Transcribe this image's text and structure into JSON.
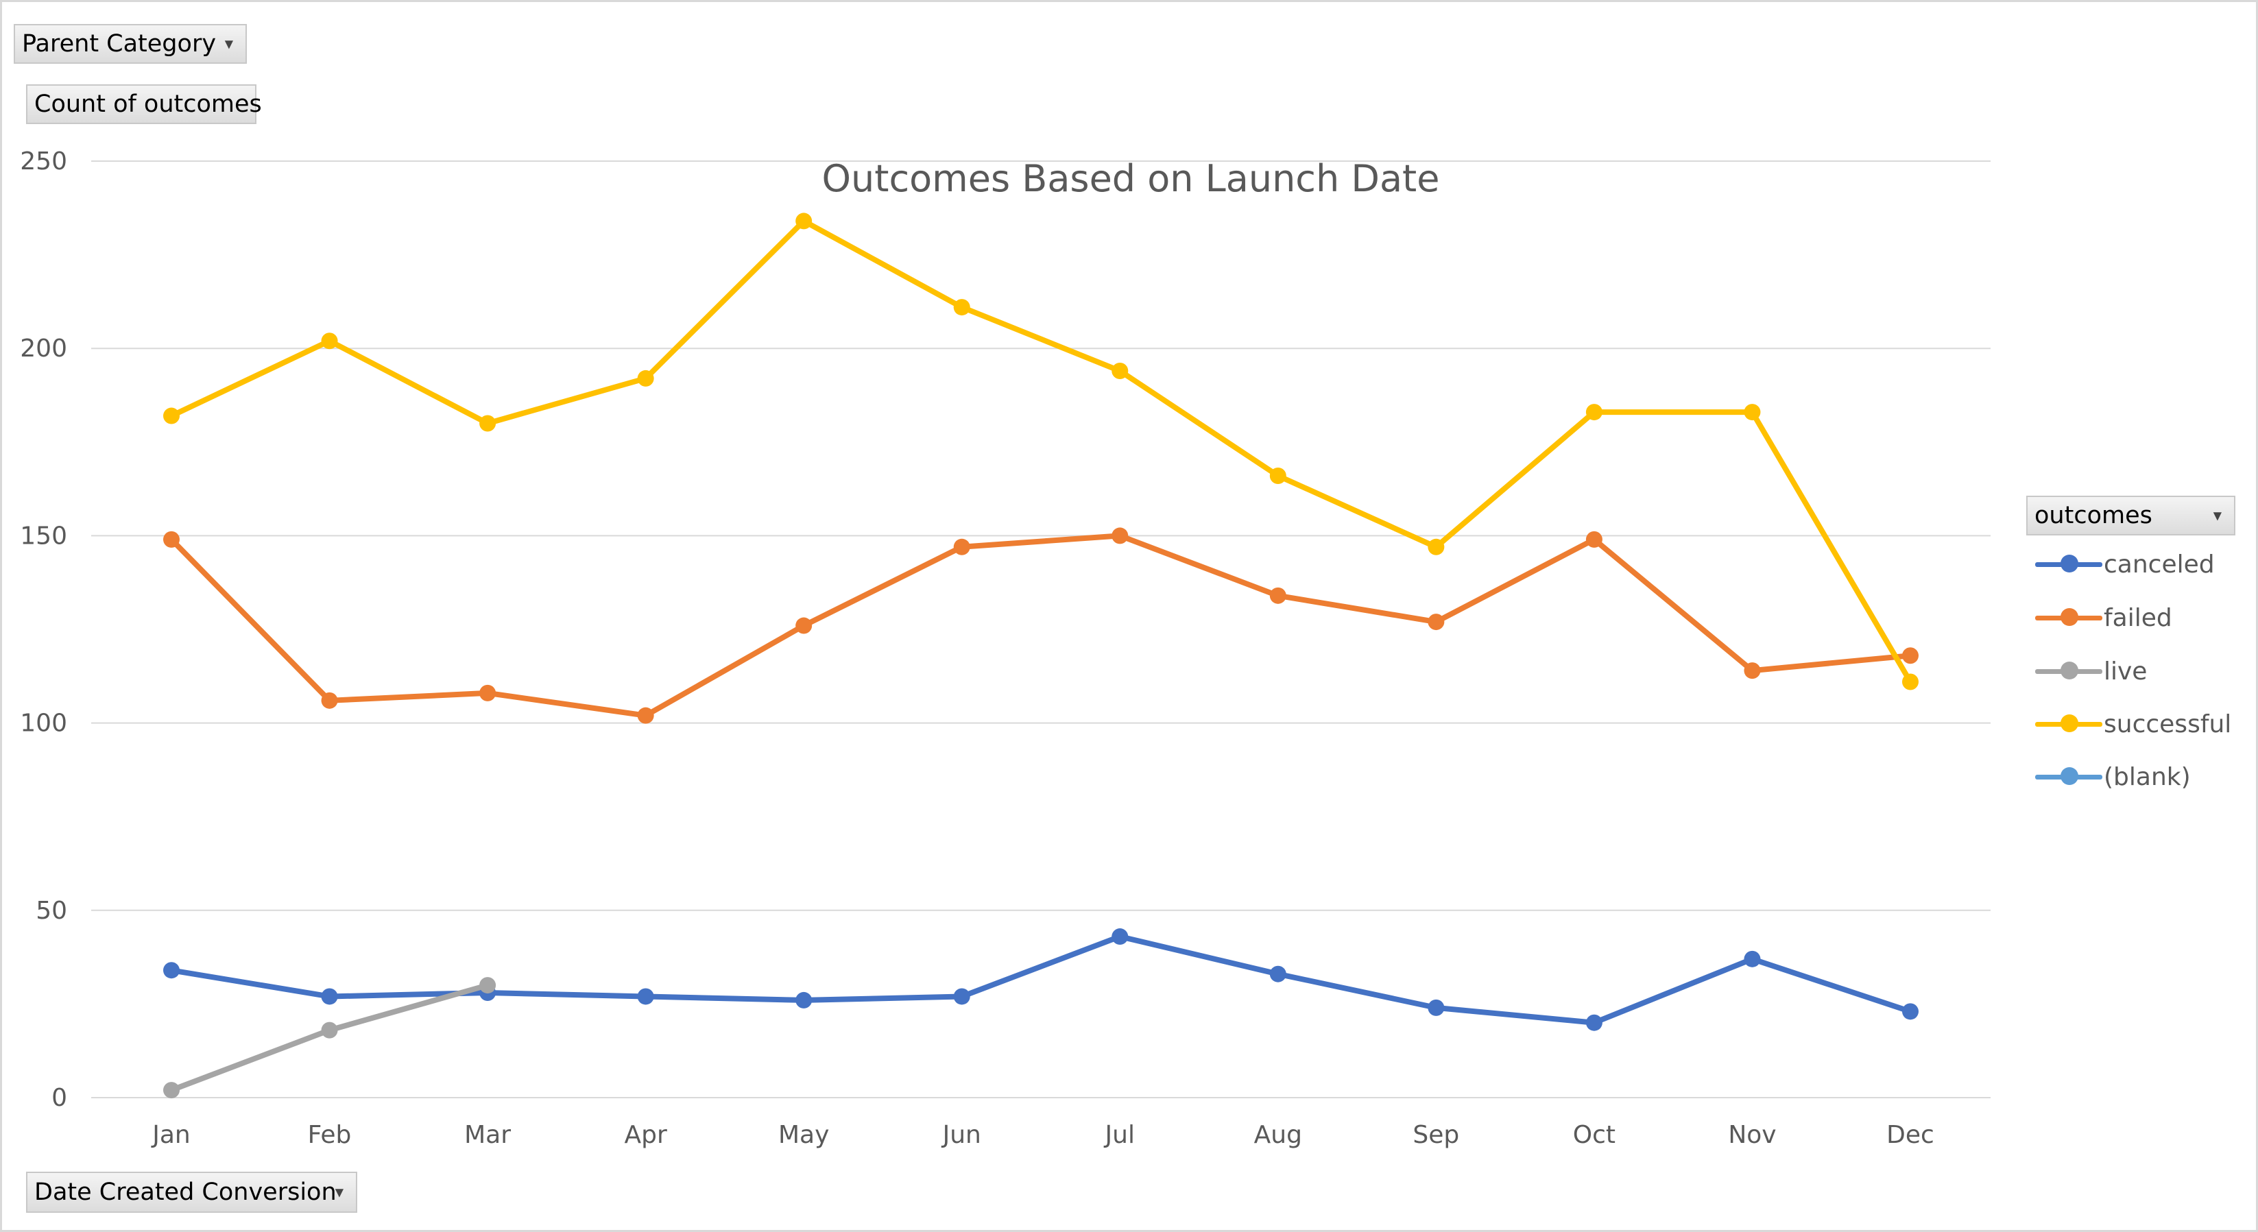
{
  "filters": {
    "parent_category": "Parent Category",
    "value_field": "Count of outcomes",
    "axis_field": "Date Created Conversion",
    "legend_field": "outcomes"
  },
  "colors": {
    "canceled": "#4472c4",
    "failed": "#ed7d31",
    "live": "#a5a5a5",
    "successful": "#ffc000",
    "blank": "#5b9bd5",
    "grid": "#d9d9d9",
    "text": "#595959"
  },
  "chart_data": {
    "type": "line",
    "title": "Outcomes Based on Launch Date",
    "xlabel": "",
    "ylabel": "",
    "categories": [
      "Jan",
      "Feb",
      "Mar",
      "Apr",
      "May",
      "Jun",
      "Jul",
      "Aug",
      "Sep",
      "Oct",
      "Nov",
      "Dec"
    ],
    "ylim": [
      0,
      250
    ],
    "yticks": [
      0,
      50,
      100,
      150,
      200,
      250
    ],
    "grid": true,
    "legend_position": "right",
    "series": [
      {
        "name": "canceled",
        "color": "#4472c4",
        "values": [
          34,
          27,
          28,
          27,
          26,
          27,
          43,
          33,
          24,
          20,
          37,
          23
        ]
      },
      {
        "name": "failed",
        "color": "#ed7d31",
        "values": [
          149,
          106,
          108,
          102,
          126,
          147,
          150,
          134,
          127,
          149,
          114,
          118
        ]
      },
      {
        "name": "live",
        "color": "#a5a5a5",
        "values": [
          2,
          18,
          30,
          null,
          null,
          null,
          null,
          null,
          null,
          null,
          null,
          null
        ]
      },
      {
        "name": "successful",
        "color": "#ffc000",
        "values": [
          182,
          202,
          180,
          192,
          234,
          211,
          194,
          166,
          147,
          183,
          183,
          111
        ]
      },
      {
        "name": "(blank)",
        "color": "#5b9bd5",
        "values": [
          null,
          null,
          null,
          null,
          null,
          null,
          null,
          null,
          null,
          null,
          null,
          null
        ]
      }
    ]
  }
}
